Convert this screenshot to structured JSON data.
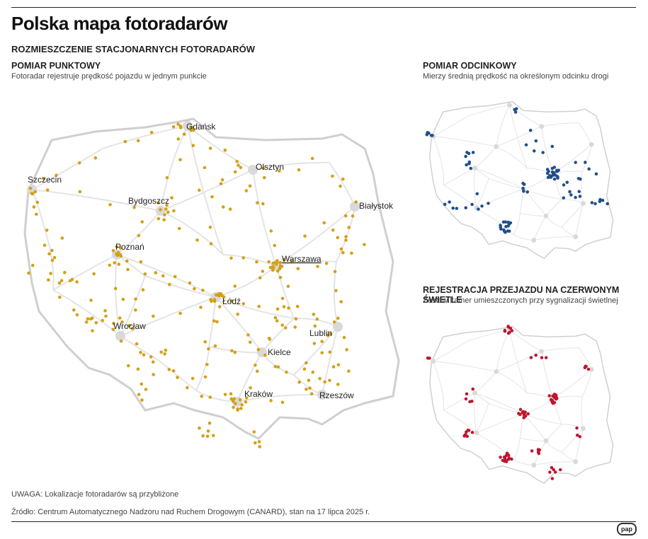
{
  "title": "Polska mapa fotoradarów",
  "subtitle": "ROZMIESZCZENIE STACJONARNYCH FOTORADARÓW",
  "sections": {
    "point": {
      "heading": "POMIAR PUNKTOWY",
      "description": "Fotoradar rejestruje prędkość pojazdu w jednym punkcie",
      "dot_color": "#d4a017"
    },
    "section": {
      "heading": "POMIAR ODCINKOWY",
      "description": "Mierzy średnią prędkość na określonym odcinku drogi",
      "dot_color": "#1f4e8c"
    },
    "red_light": {
      "heading": "REJESTRACJA PRZEJAZDU NA CZERWONYM ŚWIETLE",
      "description": "Zestaw kamer umieszczonych przy sygnalizacji świetlnej",
      "dot_color": "#c0152f"
    }
  },
  "cities": {
    "gdansk": "Gdańsk",
    "szczecin": "Szczecin",
    "olsztyn": "Olsztyn",
    "bydgoszcz": "Bydgoszcz",
    "bialystok": "Białystok",
    "poznan": "Poznań",
    "warszawa": "Warszawa",
    "lodz": "Łódź",
    "wroclaw": "Wrocław",
    "lublin": "Lublin",
    "kielce": "Kielce",
    "krakow": "Kraków",
    "rzeszow": "Rzeszów"
  },
  "note": "UWAGA: Lokalizacje fotoradarów są przybliżone",
  "source": "Źródło: Centrum Automatycznego Nadzoru nad Ruchem Drogowym (CANARD), stan na 17 lipca 2025 r.",
  "logo": "pap",
  "colors": {
    "map_fill": "#ffffff",
    "map_outline": "#cfcfcf",
    "roads": "#e4e4e4",
    "city_blob": "#d9d9d9"
  }
}
